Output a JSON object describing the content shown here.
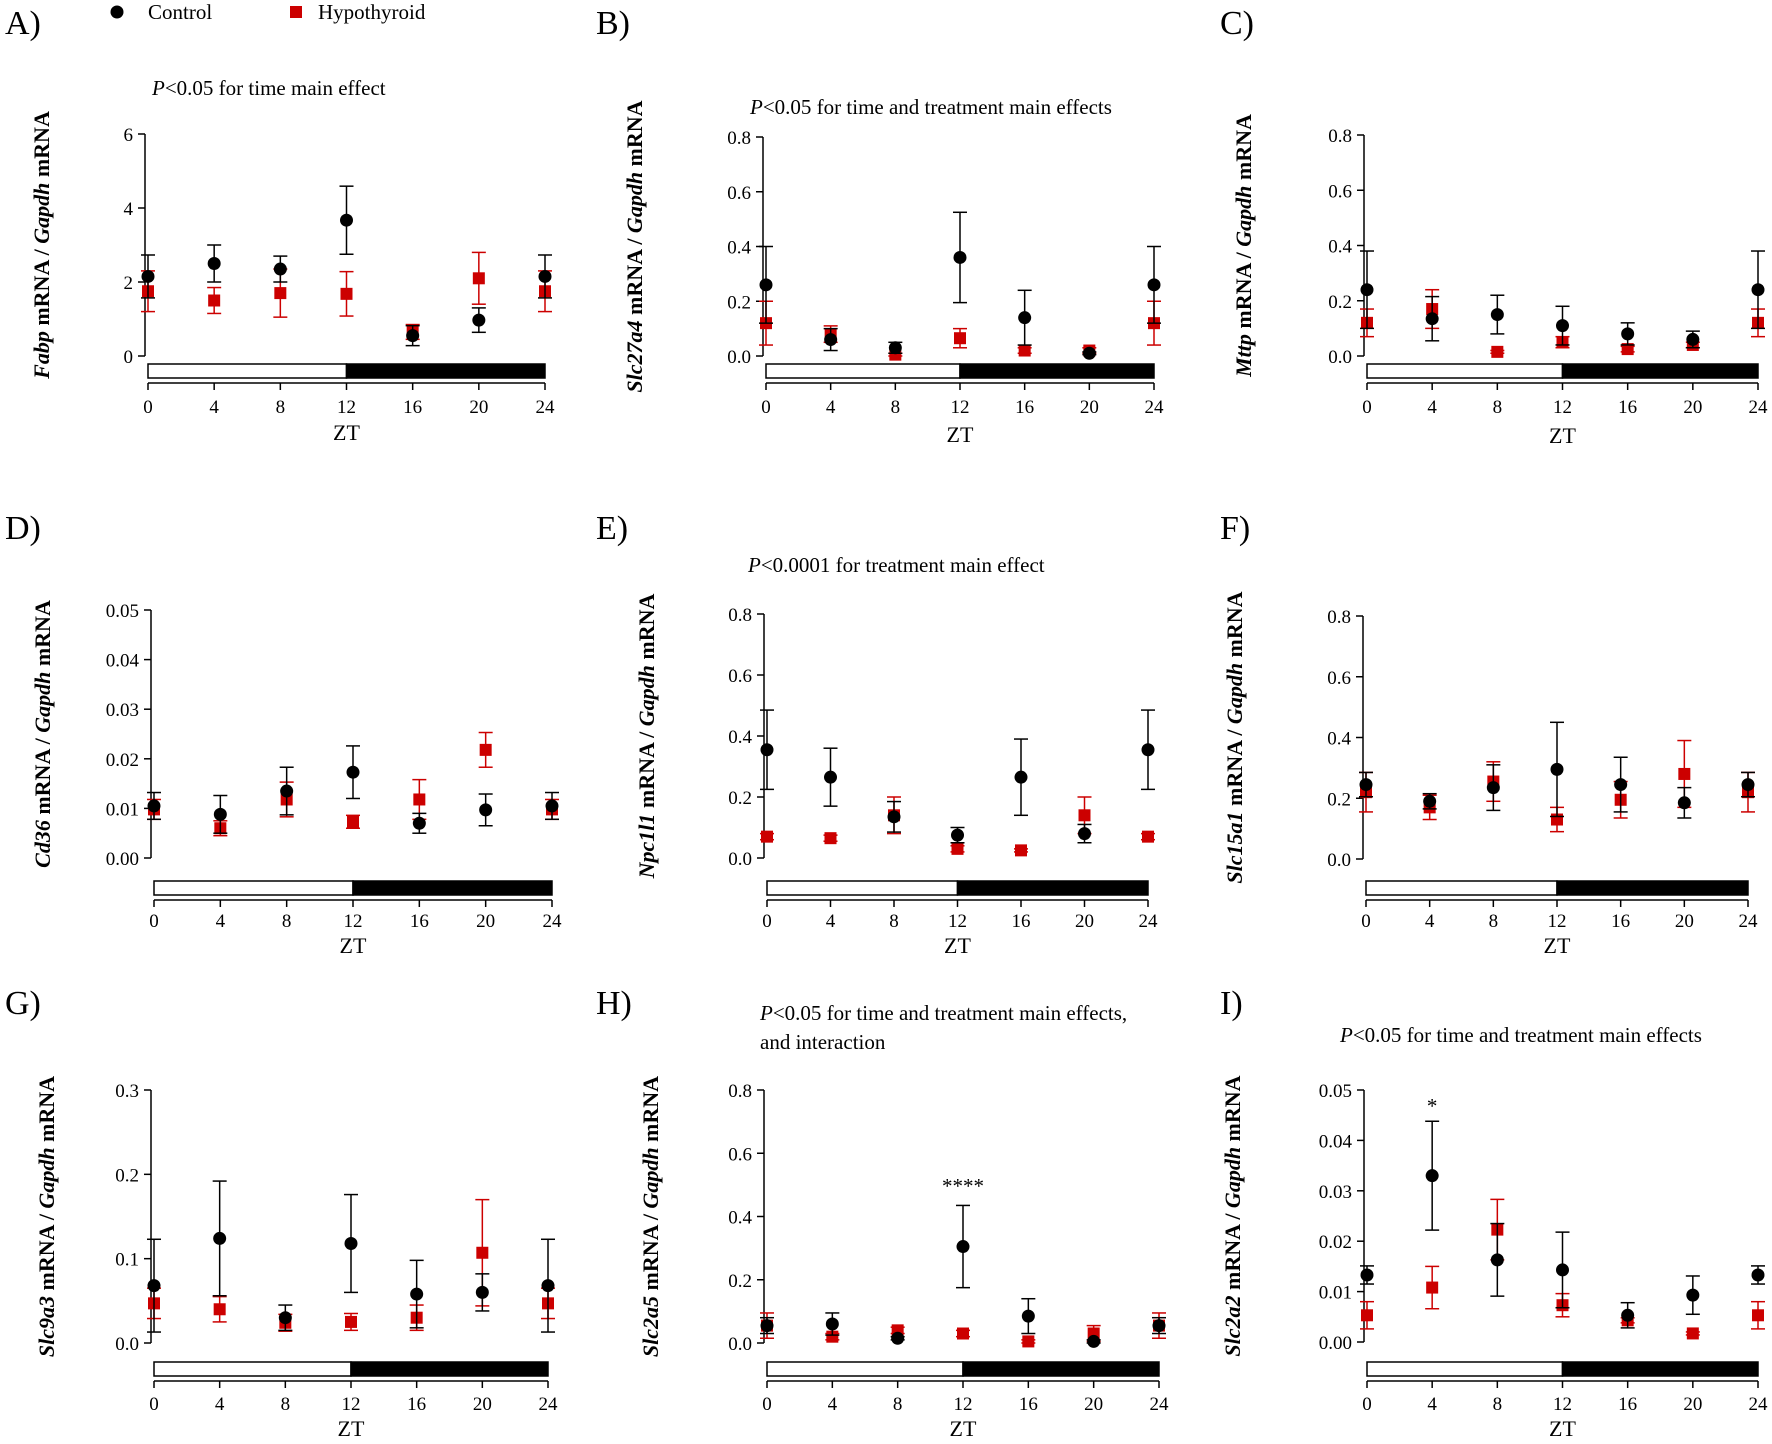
{
  "legend": [
    {
      "label": "Control",
      "color": "#000000",
      "marker": "circle"
    },
    {
      "label": "Hypothyroid",
      "color": "#cc0000",
      "marker": "square"
    }
  ],
  "colors": {
    "control": "#000000",
    "hypothyroid": "#cc0000",
    "light_bar": "#ffffff",
    "dark_bar": "#000000"
  },
  "chart_data": [
    {
      "type": "scatter",
      "panel": "A)",
      "gene": "Fabp",
      "ylabel_parts": [
        {
          "t": "Fabp",
          "i": true
        },
        {
          "t": " mRNA / ",
          "i": false
        },
        {
          "t": "Gapdh",
          "i": true
        },
        {
          "t": " mRNA",
          "i": false
        }
      ],
      "note": [
        "P<0.05 for time main effect"
      ],
      "xlabel": "ZT",
      "x": [
        0,
        4,
        8,
        12,
        16,
        20,
        24
      ],
      "xlim": [
        0,
        24
      ],
      "ylim": [
        0,
        6
      ],
      "yticks": [
        0,
        2,
        4,
        6
      ],
      "ytick_labels": [
        "0",
        "2",
        "4",
        "6"
      ],
      "series": [
        {
          "name": "Control",
          "values": [
            2.15,
            2.5,
            2.35,
            3.67,
            0.55,
            0.97,
            2.15
          ],
          "err": [
            0.58,
            0.5,
            0.35,
            0.92,
            0.27,
            0.33,
            0.58
          ]
        },
        {
          "name": "Hypothyroid",
          "values": [
            1.75,
            1.5,
            1.7,
            1.68,
            0.65,
            2.1,
            1.75
          ],
          "err": [
            0.55,
            0.35,
            0.65,
            0.6,
            0.2,
            0.7,
            0.55
          ]
        }
      ],
      "annotations": []
    },
    {
      "type": "scatter",
      "panel": "B)",
      "gene": "Slc27a4",
      "ylabel_parts": [
        {
          "t": "Slc27a4",
          "i": true
        },
        {
          "t": " mRNA / ",
          "i": false
        },
        {
          "t": "Gapdh",
          "i": true
        },
        {
          "t": " mRNA",
          "i": false
        }
      ],
      "note": [
        "P<0.05 for time and treatment main effects"
      ],
      "xlabel": "ZT",
      "x": [
        0,
        4,
        8,
        12,
        16,
        20,
        24
      ],
      "xlim": [
        0,
        24
      ],
      "ylim": [
        0,
        0.8
      ],
      "yticks": [
        0,
        0.2,
        0.4,
        0.6,
        0.8
      ],
      "ytick_labels": [
        "0.0",
        "0.2",
        "0.4",
        "0.6",
        "0.8"
      ],
      "series": [
        {
          "name": "Control",
          "values": [
            0.26,
            0.06,
            0.03,
            0.36,
            0.14,
            0.01,
            0.26
          ],
          "err": [
            0.14,
            0.04,
            0.02,
            0.165,
            0.1,
            0.005,
            0.14
          ]
        },
        {
          "name": "Hypothyroid",
          "values": [
            0.12,
            0.08,
            0.005,
            0.065,
            0.02,
            0.02,
            0.12
          ],
          "err": [
            0.08,
            0.03,
            0.005,
            0.035,
            0.01,
            0.01,
            0.08
          ]
        }
      ],
      "annotations": []
    },
    {
      "type": "scatter",
      "panel": "C)",
      "gene": "Mttp",
      "ylabel_parts": [
        {
          "t": "Mttp",
          "i": true
        },
        {
          "t": " mRNA / ",
          "i": false
        },
        {
          "t": "Gapdh",
          "i": true
        },
        {
          "t": " mRNA",
          "i": false
        }
      ],
      "note": [],
      "xlabel": "ZT",
      "x": [
        0,
        4,
        8,
        12,
        16,
        20,
        24
      ],
      "xlim": [
        0,
        24
      ],
      "ylim": [
        0,
        0.8
      ],
      "yticks": [
        0,
        0.2,
        0.4,
        0.6,
        0.8
      ],
      "ytick_labels": [
        "0.0",
        "0.2",
        "0.4",
        "0.6",
        "0.8"
      ],
      "series": [
        {
          "name": "Control",
          "values": [
            0.24,
            0.135,
            0.15,
            0.11,
            0.08,
            0.06,
            0.24
          ],
          "err": [
            0.14,
            0.08,
            0.07,
            0.07,
            0.04,
            0.03,
            0.14
          ]
        },
        {
          "name": "Hypothyroid",
          "values": [
            0.12,
            0.17,
            0.015,
            0.05,
            0.025,
            0.04,
            0.12
          ],
          "err": [
            0.05,
            0.07,
            0.005,
            0.02,
            0.01,
            0.01,
            0.05
          ]
        }
      ],
      "annotations": []
    },
    {
      "type": "scatter",
      "panel": "D)",
      "gene": "Cd36",
      "ylabel_parts": [
        {
          "t": "Cd36",
          "i": true
        },
        {
          "t": " mRNA / ",
          "i": false
        },
        {
          "t": "Gapdh",
          "i": true
        },
        {
          "t": " mRNA",
          "i": false
        }
      ],
      "note": [],
      "xlabel": "ZT",
      "x": [
        0,
        4,
        8,
        12,
        16,
        20,
        24
      ],
      "xlim": [
        0,
        24
      ],
      "ylim": [
        0,
        0.05
      ],
      "yticks": [
        0,
        0.01,
        0.02,
        0.03,
        0.04,
        0.05
      ],
      "ytick_labels": [
        "0.00",
        "0.01",
        "0.02",
        "0.03",
        "0.04",
        "0.05"
      ],
      "series": [
        {
          "name": "Control",
          "values": [
            0.0105,
            0.0088,
            0.0135,
            0.0173,
            0.007,
            0.0097,
            0.0105
          ],
          "err": [
            0.0027,
            0.0038,
            0.0048,
            0.0053,
            0.002,
            0.0032,
            0.0027
          ]
        },
        {
          "name": "Hypothyroid",
          "values": [
            0.0098,
            0.006,
            0.0118,
            0.0073,
            0.0118,
            0.0218,
            0.0098
          ],
          "err": [
            0.002,
            0.0015,
            0.0035,
            0.0013,
            0.004,
            0.0035,
            0.002
          ]
        }
      ],
      "annotations": []
    },
    {
      "type": "scatter",
      "panel": "E)",
      "gene": "Npc1l1",
      "ylabel_parts": [
        {
          "t": "Npc1l1",
          "i": true
        },
        {
          "t": " mRNA / ",
          "i": false
        },
        {
          "t": "Gapdh",
          "i": true
        },
        {
          "t": " mRNA",
          "i": false
        }
      ],
      "note": [
        "P<0.0001 for treatment main effect"
      ],
      "xlabel": "ZT",
      "x": [
        0,
        4,
        8,
        12,
        16,
        20,
        24
      ],
      "xlim": [
        0,
        24
      ],
      "ylim": [
        0,
        0.8
      ],
      "yticks": [
        0,
        0.2,
        0.4,
        0.6,
        0.8
      ],
      "ytick_labels": [
        "0.0",
        "0.2",
        "0.4",
        "0.6",
        "0.8"
      ],
      "series": [
        {
          "name": "Control",
          "values": [
            0.355,
            0.265,
            0.135,
            0.075,
            0.265,
            0.08,
            0.355
          ],
          "err": [
            0.13,
            0.095,
            0.05,
            0.025,
            0.125,
            0.03,
            0.13
          ]
        },
        {
          "name": "Hypothyroid",
          "values": [
            0.07,
            0.065,
            0.14,
            0.03,
            0.025,
            0.14,
            0.07
          ],
          "err": [
            0.01,
            0.01,
            0.06,
            0.01,
            0.005,
            0.06,
            0.01
          ]
        }
      ],
      "annotations": []
    },
    {
      "type": "scatter",
      "panel": "F)",
      "gene": "Slc15a1",
      "ylabel_parts": [
        {
          "t": "Slc15a1",
          "i": true
        },
        {
          "t": " mRNA / ",
          "i": false
        },
        {
          "t": "Gapdh",
          "i": true
        },
        {
          "t": " mRNA",
          "i": false
        }
      ],
      "note": [],
      "xlabel": "ZT",
      "x": [
        0,
        4,
        8,
        12,
        16,
        20,
        24
      ],
      "xlim": [
        0,
        24
      ],
      "ylim": [
        0,
        0.8
      ],
      "yticks": [
        0,
        0.2,
        0.4,
        0.6,
        0.8
      ],
      "ytick_labels": [
        "0.0",
        "0.2",
        "0.4",
        "0.6",
        "0.8"
      ],
      "series": [
        {
          "name": "Control",
          "values": [
            0.245,
            0.19,
            0.235,
            0.295,
            0.245,
            0.185,
            0.245
          ],
          "err": [
            0.04,
            0.025,
            0.075,
            0.155,
            0.09,
            0.05,
            0.04
          ]
        },
        {
          "name": "Hypothyroid",
          "values": [
            0.22,
            0.17,
            0.255,
            0.13,
            0.195,
            0.28,
            0.22
          ],
          "err": [
            0.065,
            0.04,
            0.065,
            0.04,
            0.06,
            0.11,
            0.065
          ]
        }
      ],
      "annotations": []
    },
    {
      "type": "scatter",
      "panel": "G)",
      "gene": "Slc9a3",
      "ylabel_parts": [
        {
          "t": "Slc9a3",
          "i": true
        },
        {
          "t": " mRNA / ",
          "i": false
        },
        {
          "t": "Gapdh",
          "i": true
        },
        {
          "t": " mRNA",
          "i": false
        }
      ],
      "note": [],
      "xlabel": "ZT",
      "x": [
        0,
        4,
        8,
        12,
        16,
        20,
        24
      ],
      "xlim": [
        0,
        24
      ],
      "ylim": [
        0,
        0.3
      ],
      "yticks": [
        0,
        0.1,
        0.2,
        0.3
      ],
      "ytick_labels": [
        "0.0",
        "0.1",
        "0.2",
        "0.3"
      ],
      "series": [
        {
          "name": "Control",
          "values": [
            0.068,
            0.124,
            0.03,
            0.118,
            0.058,
            0.06,
            0.068
          ],
          "err": [
            0.055,
            0.068,
            0.015,
            0.058,
            0.04,
            0.022,
            0.055
          ]
        },
        {
          "name": "Hypothyroid",
          "values": [
            0.047,
            0.04,
            0.024,
            0.025,
            0.03,
            0.107,
            0.047
          ],
          "err": [
            0.018,
            0.015,
            0.01,
            0.01,
            0.015,
            0.063,
            0.018
          ]
        }
      ],
      "annotations": []
    },
    {
      "type": "scatter",
      "panel": "H)",
      "gene": "Slc2a5",
      "ylabel_parts": [
        {
          "t": "Slc2a5",
          "i": true
        },
        {
          "t": " mRNA / ",
          "i": false
        },
        {
          "t": "Gapdh",
          "i": true
        },
        {
          "t": " mRNA",
          "i": false
        }
      ],
      "note": [
        "P<0.05 for time and treatment main effects,",
        "and interaction"
      ],
      "xlabel": "ZT",
      "x": [
        0,
        4,
        8,
        12,
        16,
        20,
        24
      ],
      "xlim": [
        0,
        24
      ],
      "ylim": [
        0,
        0.8
      ],
      "yticks": [
        0,
        0.2,
        0.4,
        0.6,
        0.8
      ],
      "ytick_labels": [
        "0.0",
        "0.2",
        "0.4",
        "0.6",
        "0.8"
      ],
      "series": [
        {
          "name": "Control",
          "values": [
            0.055,
            0.06,
            0.015,
            0.305,
            0.085,
            0.005,
            0.055
          ],
          "err": [
            0.025,
            0.035,
            0.005,
            0.13,
            0.055,
            0.005,
            0.025
          ]
        },
        {
          "name": "Hypothyroid",
          "values": [
            0.055,
            0.02,
            0.04,
            0.03,
            0.005,
            0.03,
            0.055
          ],
          "err": [
            0.04,
            0.01,
            0.01,
            0.01,
            0.005,
            0.025,
            0.04
          ]
        }
      ],
      "annotations": [
        {
          "text": "****",
          "x": 12,
          "y": 0.5
        }
      ]
    },
    {
      "type": "scatter",
      "panel": "I)",
      "gene": "Slc2a2",
      "ylabel_parts": [
        {
          "t": "Slc2a2",
          "i": true
        },
        {
          "t": " mRNA / ",
          "i": false
        },
        {
          "t": "Gapdh",
          "i": true
        },
        {
          "t": " mRNA",
          "i": false
        }
      ],
      "note": [
        "P<0.05 for time and treatment main effects"
      ],
      "xlabel": "ZT",
      "x": [
        0,
        4,
        8,
        12,
        16,
        20,
        24
      ],
      "xlim": [
        0,
        24
      ],
      "ylim": [
        0,
        0.05
      ],
      "yticks": [
        0,
        0.01,
        0.02,
        0.03,
        0.04,
        0.05
      ],
      "ytick_labels": [
        "0.00",
        "0.01",
        "0.02",
        "0.03",
        "0.04",
        "0.05"
      ],
      "series": [
        {
          "name": "Control",
          "values": [
            0.0133,
            0.033,
            0.0163,
            0.0143,
            0.0053,
            0.0093,
            0.0133
          ],
          "err": [
            0.0018,
            0.0108,
            0.0072,
            0.0075,
            0.0025,
            0.0038,
            0.0018
          ]
        },
        {
          "name": "Hypothyroid",
          "values": [
            0.0053,
            0.0108,
            0.0223,
            0.0073,
            0.0043,
            0.0017,
            0.0053
          ],
          "err": [
            0.0027,
            0.0042,
            0.006,
            0.0023,
            0.0005,
            0.0003,
            0.0027
          ]
        }
      ],
      "annotations": [
        {
          "text": "*",
          "x": 4,
          "y": 0.047
        }
      ]
    }
  ]
}
